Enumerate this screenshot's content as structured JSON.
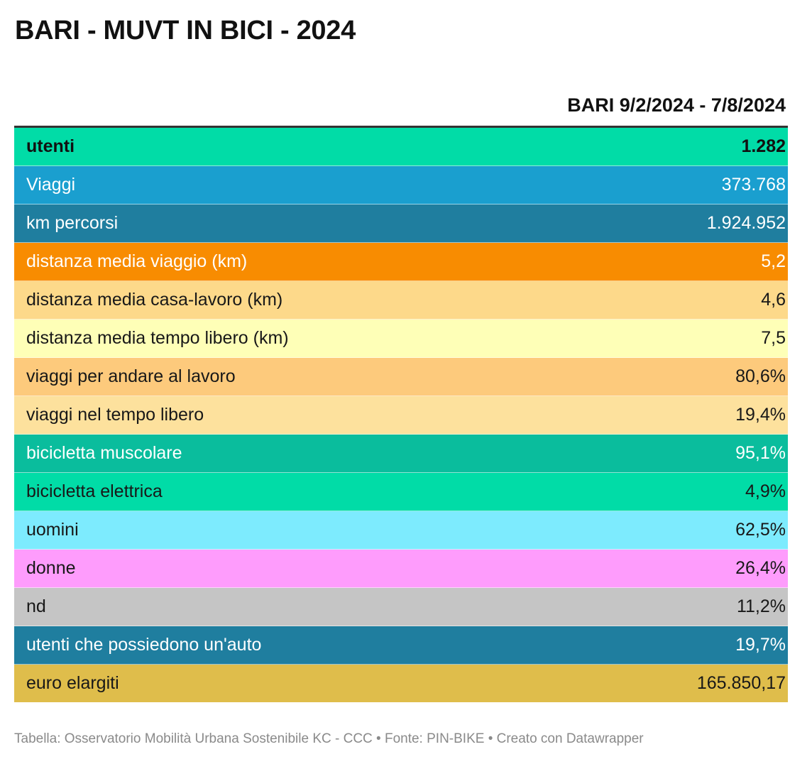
{
  "title": "BARI - MUVT IN BICI - 2024",
  "chart_data": {
    "type": "table",
    "title": "BARI - MUVT IN BICI - 2024",
    "columns": [
      "",
      "BARI 9/2/2024 - 7/8/2024"
    ],
    "rows": [
      {
        "label": "utenti",
        "value": "1.282",
        "bg": "#01DCA7",
        "fg": "#111111",
        "bold": true
      },
      {
        "label": "Viaggi",
        "value": "373.768",
        "bg": "#1A9FCF",
        "fg": "#ffffff",
        "bold": false
      },
      {
        "label": "km percorsi",
        "value": "1.924.952",
        "bg": "#1F7E9F",
        "fg": "#ffffff",
        "bold": false
      },
      {
        "label": "distanza media viaggio (km)",
        "value": "5,2",
        "bg": "#F88C01",
        "fg": "#ffffff",
        "bold": false
      },
      {
        "label": "distanza media casa-lavoro (km)",
        "value": "4,6",
        "bg": "#FDD98A",
        "fg": "#181818",
        "bold": false
      },
      {
        "label": "distanza media tempo libero (km)",
        "value": "7,5",
        "bg": "#FEFFB7",
        "fg": "#181818",
        "bold": false
      },
      {
        "label": "viaggi per andare al lavoro",
        "value": "80,6%",
        "bg": "#FDCA7C",
        "fg": "#181818",
        "bold": false
      },
      {
        "label": "viaggi nel tempo libero",
        "value": "19,4%",
        "bg": "#FDE19D",
        "fg": "#181818",
        "bold": false
      },
      {
        "label": "bicicletta muscolare",
        "value": "95,1%",
        "bg": "#0ABD9D",
        "fg": "#ffffff",
        "bold": false
      },
      {
        "label": "bicicletta elettrica",
        "value": "4,9%",
        "bg": "#01DCA7",
        "fg": "#181818",
        "bold": false
      },
      {
        "label": "uomini",
        "value": "62,5%",
        "bg": "#7DEBFE",
        "fg": "#181818",
        "bold": false
      },
      {
        "label": "donne",
        "value": "26,4%",
        "bg": "#FE9CFC",
        "fg": "#181818",
        "bold": false
      },
      {
        "label": "nd",
        "value": "11,2%",
        "bg": "#C5C5C5",
        "fg": "#181818",
        "bold": false
      },
      {
        "label": "utenti che possiedono un'auto",
        "value": "19,7%",
        "bg": "#1F7E9F",
        "fg": "#ffffff",
        "bold": false
      },
      {
        "label": "euro elargiti",
        "value": "165.850,17",
        "bg": "#DFBD4B",
        "fg": "#181818",
        "bold": false
      }
    ]
  },
  "footer": "Tabella: Osservatorio Mobilità Urbana Sostenibile KC - CCC • Fonte: PIN-BIKE • Creato con Datawrapper"
}
